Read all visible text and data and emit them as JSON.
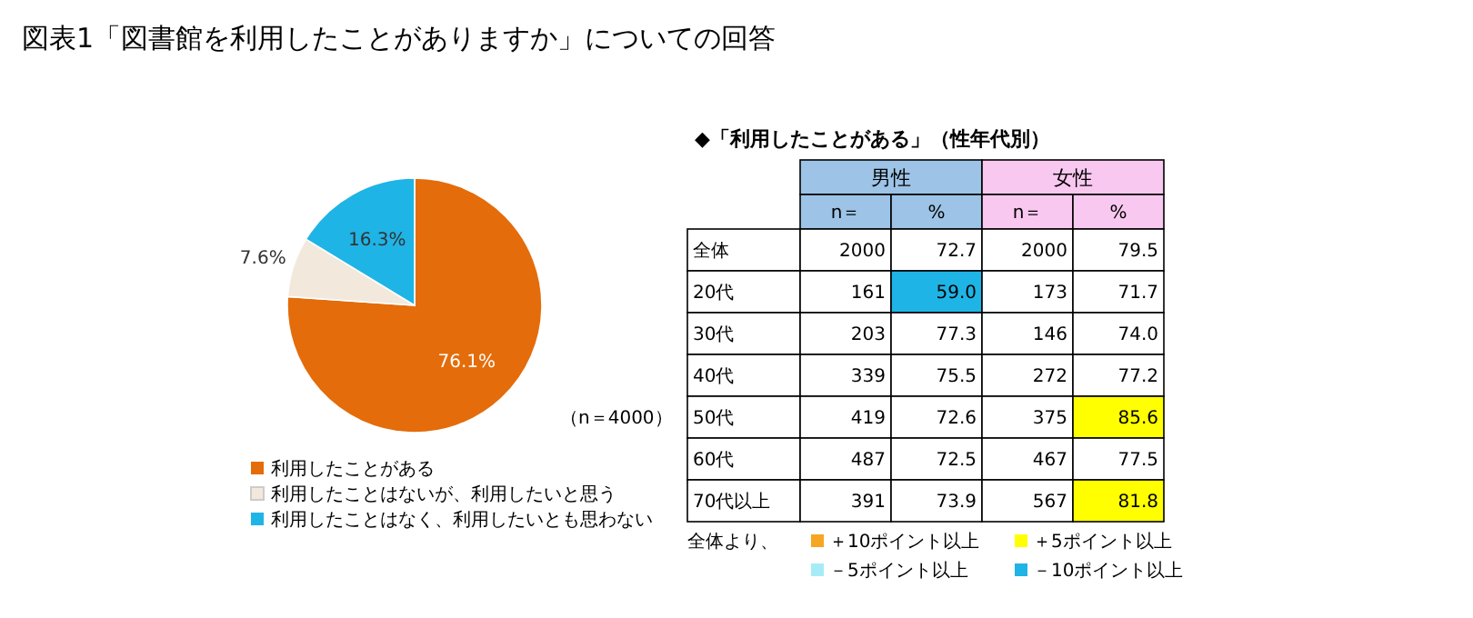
{
  "chart_data": [
    {
      "type": "pie",
      "title": "図表1「図書館を利用したことがありますか」についての回答",
      "categories": [
        "利用したことがある",
        "利用したことはないが、利用したいと思う",
        "利用したことはなく、利用したいとも思わない"
      ],
      "values": [
        76.1,
        7.6,
        16.3
      ],
      "colors": [
        "#e46c0a",
        "#f2e8dc",
        "#1fb4e6"
      ],
      "value_labels": [
        "76.1%",
        "7.6%",
        "16.3%"
      ],
      "annotations": [
        "（n＝4000）"
      ],
      "legend": "bottom"
    },
    {
      "type": "heatmap",
      "title": "◆「利用したことがある」（性年代別）",
      "categories": [
        "n＝",
        "%",
        "n＝",
        "%"
      ],
      "y_categories": [
        "全体",
        "20代",
        "30代",
        "40代",
        "50代",
        "60代",
        "70代以上"
      ],
      "cells": [
        [
          2000,
          72.7,
          2000,
          79.5
        ],
        [
          161,
          59.0,
          173,
          71.7
        ],
        [
          203,
          77.3,
          146,
          74.0
        ],
        [
          339,
          75.5,
          272,
          77.2
        ],
        [
          419,
          72.6,
          375,
          85.6
        ],
        [
          487,
          72.5,
          467,
          77.5
        ],
        [
          391,
          73.9,
          567,
          81.8
        ]
      ],
      "cell_labels": [
        [
          "2000",
          "72.7",
          "2000",
          "79.5"
        ],
        [
          "161",
          "59.0",
          "173",
          "71.7"
        ],
        [
          "203",
          "77.3",
          "146",
          "74.0"
        ],
        [
          "339",
          "75.5",
          "272",
          "77.2"
        ],
        [
          "419",
          "72.6",
          "375",
          "85.6"
        ],
        [
          "487",
          "72.5",
          "467",
          "77.5"
        ],
        [
          "391",
          "73.9",
          "567",
          "81.8"
        ]
      ],
      "colors": [
        [
          null,
          null,
          null,
          null
        ],
        [
          null,
          "#1fb4e6",
          null,
          null
        ],
        [
          null,
          null,
          null,
          null
        ],
        [
          null,
          null,
          null,
          null
        ],
        [
          null,
          null,
          null,
          "#ffff00"
        ],
        [
          null,
          null,
          null,
          null
        ],
        [
          null,
          null,
          null,
          "#ffff00"
        ]
      ],
      "annotations": [
        "男性",
        "女性",
        "全体より、"
      ],
      "series": [
        {
          "name": "＋10ポイント以上",
          "color": "#f5a623",
          "values": [
            null,
            null,
            null,
            null
          ]
        },
        {
          "name": "＋5ポイント以上",
          "color": "#ffff00",
          "values": [
            null,
            null,
            null,
            null
          ]
        },
        {
          "name": "－5ポイント以上",
          "color": "#a6ecf7",
          "values": [
            null,
            null,
            null,
            null
          ]
        },
        {
          "name": "－10ポイント以上",
          "color": "#1fb4e6",
          "values": [
            null,
            null,
            null,
            null
          ]
        }
      ],
      "data_labels": true,
      "legend": "bottom"
    }
  ]
}
